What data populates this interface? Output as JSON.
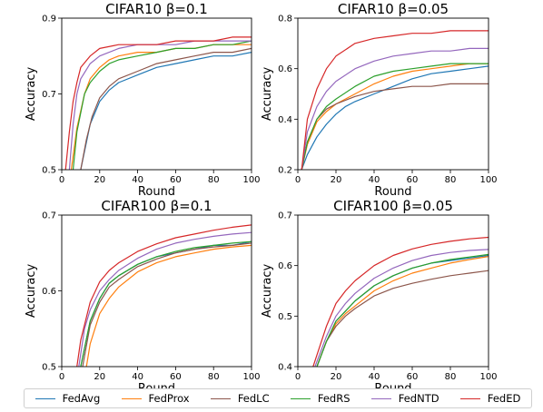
{
  "chart_data": [
    {
      "type": "line",
      "title": "CIFAR10 β=0.1",
      "xlabel": "Round",
      "ylabel": "Accuracy",
      "xlim": [
        0,
        100
      ],
      "ylim": [
        0.5,
        0.9
      ],
      "xticks": [
        "0",
        "20",
        "40",
        "60",
        "80",
        "100"
      ],
      "yticks": [
        "0.5",
        "0.7",
        "0.9"
      ],
      "series": [
        {
          "name": "FedAvg",
          "x": [
            10,
            15,
            20,
            25,
            30,
            40,
            50,
            60,
            70,
            80,
            90,
            100
          ],
          "y": [
            0.5,
            0.62,
            0.68,
            0.71,
            0.73,
            0.75,
            0.77,
            0.78,
            0.79,
            0.8,
            0.8,
            0.81
          ]
        },
        {
          "name": "FedProx",
          "x": [
            5,
            8,
            12,
            15,
            20,
            25,
            30,
            40,
            50,
            60,
            70,
            80,
            90,
            100
          ],
          "y": [
            0.5,
            0.61,
            0.7,
            0.74,
            0.77,
            0.79,
            0.8,
            0.81,
            0.81,
            0.82,
            0.82,
            0.83,
            0.83,
            0.83
          ]
        },
        {
          "name": "FedLC",
          "x": [
            10,
            13,
            16,
            20,
            25,
            30,
            40,
            50,
            60,
            70,
            80,
            90,
            100
          ],
          "y": [
            0.5,
            0.58,
            0.64,
            0.69,
            0.72,
            0.74,
            0.76,
            0.78,
            0.79,
            0.8,
            0.81,
            0.81,
            0.82
          ]
        },
        {
          "name": "FedRS",
          "x": [
            6,
            8,
            12,
            15,
            20,
            25,
            30,
            40,
            50,
            60,
            70,
            80,
            90,
            100
          ],
          "y": [
            0.5,
            0.6,
            0.7,
            0.73,
            0.76,
            0.78,
            0.79,
            0.8,
            0.81,
            0.82,
            0.82,
            0.83,
            0.83,
            0.84
          ]
        },
        {
          "name": "FedNTD",
          "x": [
            4,
            6,
            8,
            10,
            15,
            20,
            30,
            40,
            50,
            60,
            70,
            80,
            90,
            100
          ],
          "y": [
            0.5,
            0.62,
            0.7,
            0.74,
            0.78,
            0.8,
            0.82,
            0.83,
            0.83,
            0.83,
            0.84,
            0.84,
            0.84,
            0.84
          ]
        },
        {
          "name": "FedED",
          "x": [
            2,
            4,
            6,
            8,
            10,
            15,
            20,
            30,
            40,
            50,
            60,
            70,
            80,
            90,
            100
          ],
          "y": [
            0.5,
            0.6,
            0.68,
            0.73,
            0.77,
            0.8,
            0.82,
            0.83,
            0.83,
            0.83,
            0.84,
            0.84,
            0.84,
            0.85,
            0.85
          ]
        }
      ]
    },
    {
      "type": "line",
      "title": "CIFAR10 β=0.05",
      "xlabel": "Round",
      "ylabel": "Accuracy",
      "xlim": [
        0,
        100
      ],
      "ylim": [
        0.2,
        0.8
      ],
      "xticks": [
        "0",
        "20",
        "40",
        "60",
        "80",
        "100"
      ],
      "yticks": [
        "0.2",
        "0.4",
        "0.6",
        "0.8"
      ],
      "series": [
        {
          "name": "FedAvg",
          "x": [
            2,
            5,
            10,
            15,
            20,
            25,
            30,
            40,
            50,
            60,
            70,
            80,
            90,
            100
          ],
          "y": [
            0.2,
            0.26,
            0.33,
            0.38,
            0.42,
            0.45,
            0.47,
            0.5,
            0.53,
            0.56,
            0.58,
            0.59,
            0.6,
            0.61
          ]
        },
        {
          "name": "FedProx",
          "x": [
            2,
            5,
            10,
            15,
            20,
            30,
            40,
            50,
            60,
            70,
            80,
            90,
            100
          ],
          "y": [
            0.2,
            0.3,
            0.39,
            0.43,
            0.46,
            0.5,
            0.54,
            0.57,
            0.59,
            0.6,
            0.61,
            0.62,
            0.62
          ]
        },
        {
          "name": "FedLC",
          "x": [
            2,
            5,
            10,
            15,
            20,
            30,
            40,
            50,
            60,
            70,
            80,
            90,
            100
          ],
          "y": [
            0.2,
            0.31,
            0.4,
            0.44,
            0.46,
            0.49,
            0.51,
            0.52,
            0.53,
            0.53,
            0.54,
            0.54,
            0.54
          ]
        },
        {
          "name": "FedRS",
          "x": [
            2,
            5,
            10,
            15,
            20,
            30,
            40,
            50,
            60,
            70,
            80,
            90,
            100
          ],
          "y": [
            0.2,
            0.31,
            0.4,
            0.45,
            0.48,
            0.53,
            0.57,
            0.59,
            0.6,
            0.61,
            0.62,
            0.62,
            0.62
          ]
        },
        {
          "name": "FedNTD",
          "x": [
            2,
            5,
            10,
            15,
            20,
            30,
            40,
            50,
            60,
            70,
            80,
            90,
            100
          ],
          "y": [
            0.2,
            0.35,
            0.45,
            0.51,
            0.55,
            0.6,
            0.63,
            0.65,
            0.66,
            0.67,
            0.67,
            0.68,
            0.68
          ]
        },
        {
          "name": "FedED",
          "x": [
            2,
            5,
            10,
            15,
            20,
            30,
            40,
            50,
            60,
            70,
            80,
            90,
            100
          ],
          "y": [
            0.2,
            0.4,
            0.52,
            0.6,
            0.65,
            0.7,
            0.72,
            0.73,
            0.74,
            0.74,
            0.75,
            0.75,
            0.75
          ]
        }
      ]
    },
    {
      "type": "line",
      "title": "CIFAR100 β=0.1",
      "xlabel": "Round",
      "ylabel": "Accuracy",
      "xlim": [
        0,
        100
      ],
      "ylim": [
        0.5,
        0.7
      ],
      "xticks": [
        "0",
        "20",
        "40",
        "60",
        "80",
        "100"
      ],
      "yticks": [
        "0.5",
        "0.6",
        "0.7"
      ],
      "series": [
        {
          "name": "FedAvg",
          "x": [
            10,
            15,
            20,
            25,
            30,
            40,
            50,
            60,
            70,
            80,
            90,
            100
          ],
          "y": [
            0.5,
            0.56,
            0.59,
            0.61,
            0.62,
            0.635,
            0.645,
            0.65,
            0.655,
            0.66,
            0.66,
            0.665
          ]
        },
        {
          "name": "FedProx",
          "x": [
            13,
            15,
            20,
            25,
            30,
            40,
            50,
            60,
            70,
            80,
            90,
            100
          ],
          "y": [
            0.5,
            0.53,
            0.57,
            0.59,
            0.605,
            0.625,
            0.637,
            0.645,
            0.65,
            0.655,
            0.658,
            0.66
          ]
        },
        {
          "name": "FedLC",
          "x": [
            11,
            15,
            20,
            25,
            30,
            40,
            50,
            60,
            70,
            80,
            90,
            100
          ],
          "y": [
            0.5,
            0.555,
            0.585,
            0.605,
            0.615,
            0.632,
            0.642,
            0.65,
            0.655,
            0.658,
            0.66,
            0.663
          ]
        },
        {
          "name": "FedRS",
          "x": [
            10,
            15,
            20,
            25,
            30,
            40,
            50,
            60,
            70,
            80,
            90,
            100
          ],
          "y": [
            0.5,
            0.56,
            0.59,
            0.61,
            0.62,
            0.635,
            0.645,
            0.652,
            0.657,
            0.66,
            0.663,
            0.665
          ]
        },
        {
          "name": "FedNTD",
          "x": [
            9,
            12,
            15,
            20,
            25,
            30,
            40,
            50,
            60,
            70,
            80,
            90,
            100
          ],
          "y": [
            0.5,
            0.55,
            0.575,
            0.6,
            0.615,
            0.627,
            0.643,
            0.655,
            0.663,
            0.668,
            0.672,
            0.675,
            0.677
          ]
        },
        {
          "name": "FedED",
          "x": [
            8,
            10,
            15,
            20,
            25,
            30,
            40,
            50,
            60,
            70,
            80,
            90,
            100
          ],
          "y": [
            0.5,
            0.535,
            0.585,
            0.612,
            0.627,
            0.637,
            0.652,
            0.662,
            0.67,
            0.675,
            0.68,
            0.684,
            0.687
          ]
        }
      ]
    },
    {
      "type": "line",
      "title": "CIFAR100 β=0.05",
      "xlabel": "Round",
      "ylabel": "Accuracy",
      "xlim": [
        0,
        100
      ],
      "ylim": [
        0.4,
        0.7
      ],
      "xticks": [
        "0",
        "20",
        "40",
        "60",
        "80",
        "100"
      ],
      "yticks": [
        "0.4",
        "0.5",
        "0.6",
        "0.7"
      ],
      "series": [
        {
          "name": "FedAvg",
          "x": [
            10,
            15,
            20,
            25,
            30,
            40,
            50,
            60,
            70,
            80,
            90,
            100
          ],
          "y": [
            0.4,
            0.45,
            0.49,
            0.51,
            0.53,
            0.56,
            0.58,
            0.595,
            0.605,
            0.61,
            0.615,
            0.62
          ]
        },
        {
          "name": "FedProx",
          "x": [
            10,
            15,
            20,
            25,
            30,
            40,
            50,
            60,
            70,
            80,
            90,
            100
          ],
          "y": [
            0.4,
            0.45,
            0.485,
            0.505,
            0.52,
            0.55,
            0.57,
            0.585,
            0.595,
            0.605,
            0.612,
            0.618
          ]
        },
        {
          "name": "FedLC",
          "x": [
            10,
            15,
            20,
            25,
            30,
            40,
            50,
            60,
            70,
            80,
            90,
            100
          ],
          "y": [
            0.4,
            0.45,
            0.48,
            0.5,
            0.515,
            0.54,
            0.555,
            0.565,
            0.573,
            0.58,
            0.585,
            0.59
          ]
        },
        {
          "name": "FedRS",
          "x": [
            10,
            15,
            20,
            25,
            30,
            40,
            50,
            60,
            70,
            80,
            90,
            100
          ],
          "y": [
            0.4,
            0.45,
            0.49,
            0.51,
            0.53,
            0.56,
            0.58,
            0.595,
            0.605,
            0.612,
            0.617,
            0.622
          ]
        },
        {
          "name": "FedNTD",
          "x": [
            9,
            15,
            20,
            25,
            30,
            40,
            50,
            60,
            70,
            80,
            90,
            100
          ],
          "y": [
            0.4,
            0.46,
            0.5,
            0.525,
            0.545,
            0.575,
            0.595,
            0.61,
            0.62,
            0.626,
            0.63,
            0.632
          ]
        },
        {
          "name": "FedED",
          "x": [
            8,
            15,
            20,
            25,
            30,
            40,
            50,
            60,
            70,
            80,
            90,
            100
          ],
          "y": [
            0.4,
            0.48,
            0.525,
            0.55,
            0.57,
            0.6,
            0.62,
            0.633,
            0.642,
            0.648,
            0.653,
            0.656
          ]
        }
      ]
    }
  ],
  "legend": [
    {
      "label": "FedAvg",
      "color": "#1f77b4"
    },
    {
      "label": "FedProx",
      "color": "#ff7f0e"
    },
    {
      "label": "FedLC",
      "color": "#8c564b"
    },
    {
      "label": "FedRS",
      "color": "#2ca02c"
    },
    {
      "label": "FedNTD",
      "color": "#9467bd"
    },
    {
      "label": "FedED",
      "color": "#d62728"
    }
  ]
}
